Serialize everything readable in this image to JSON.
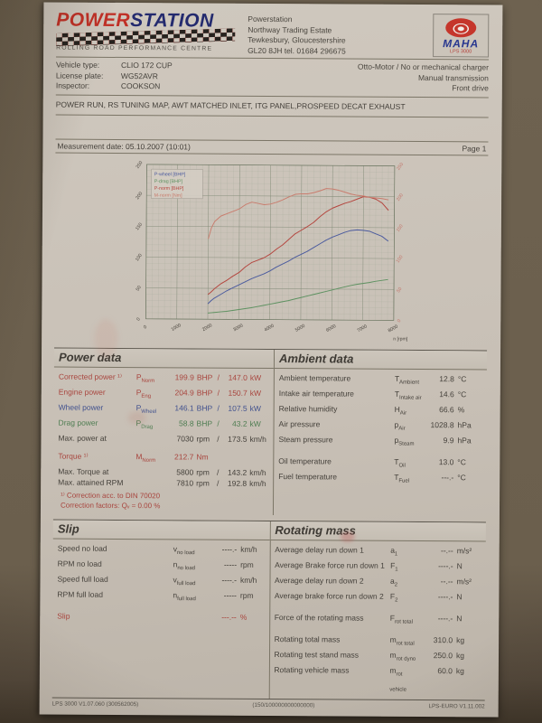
{
  "header": {
    "logo": {
      "word_red": "POWER",
      "word_blue": "STATION",
      "subtitle": "ROLLING ROAD PERFORMANCE CENTRE"
    },
    "address": [
      "Powerstation",
      "Northway Trading Estate",
      "Tewkesbury, Gloucestershire",
      "GL20 8JH     tel. 01684 296675"
    ],
    "maha": {
      "name": "MAHA",
      "model": "LPS 3000"
    }
  },
  "vehicle": {
    "rows": [
      {
        "label": "Vehicle type:",
        "value": "CLIO 172 CUP"
      },
      {
        "label": "License plate:",
        "value": "WG52AVR"
      },
      {
        "label": "Inspector:",
        "value": "COOKSON"
      }
    ],
    "drivetrain": [
      "Otto-Motor / No or mechanical charger",
      "Manual transmission",
      "Front drive"
    ],
    "comment": "POWER RUN, RS TUNING MAP, AWT MATCHED INLET, ITG PANEL,PROSPEED DECAT EXHAUST"
  },
  "measurement": {
    "label": "Measurement date: 05.10.2007 (10:01)",
    "page": "Page 1"
  },
  "chart_data": {
    "type": "line",
    "title": "",
    "xlabel": "n [rpm]",
    "xlim": [
      0,
      8000
    ],
    "ylim_left": [
      0,
      250
    ],
    "ylim_right": [
      0,
      250
    ],
    "x_ticks": [
      0,
      1000,
      2000,
      3000,
      4000,
      5000,
      6000,
      7000,
      8000
    ],
    "y_ticks": [
      0,
      50,
      100,
      150,
      200,
      250
    ],
    "x_minor_step": 200,
    "y_minor_step": 10,
    "grid": true,
    "legend_position": "top-left",
    "x": [
      2000,
      2100,
      2200,
      2400,
      2600,
      2800,
      3000,
      3200,
      3400,
      3600,
      3800,
      4000,
      4200,
      4400,
      4600,
      4800,
      5000,
      5200,
      5400,
      5600,
      5800,
      6000,
      6200,
      6400,
      6600,
      6800,
      7000,
      7200,
      7400,
      7600,
      7810
    ],
    "series": [
      {
        "name": "P-wheel [BHP]",
        "color": "#4a5a9e",
        "values": [
          25,
          30,
          34,
          40,
          46,
          51,
          56,
          61,
          66,
          70,
          74,
          79,
          85,
          90,
          95,
          101,
          106,
          111,
          117,
          123,
          129,
          134,
          138,
          142,
          145,
          146.1,
          145.5,
          144,
          140,
          136,
          128
        ]
      },
      {
        "name": "P-drag [BHP]",
        "color": "#5d9160",
        "values": [
          10,
          10.5,
          11,
          12,
          13,
          14.5,
          16,
          17.5,
          19,
          21,
          23,
          25,
          27,
          29,
          31,
          33.5,
          36,
          38.5,
          41,
          43.5,
          46,
          48.5,
          51,
          53.5,
          56,
          58,
          59.5,
          61,
          63,
          64.5,
          66
        ]
      },
      {
        "name": "P-norm [BHP]",
        "color": "#b4453e",
        "values": [
          40,
          44,
          49,
          57,
          63,
          70,
          76,
          85,
          92,
          96,
          100,
          106,
          114,
          121,
          130,
          139,
          145,
          151,
          158,
          167,
          175,
          181,
          185,
          189,
          192,
          196,
          199.9,
          199,
          196,
          190,
          178
        ]
      },
      {
        "name": "M-norm [Nm]",
        "color": "#c97c6d",
        "values": [
          130,
          148,
          158,
          167,
          171,
          175,
          179,
          186,
          190,
          188,
          186,
          187,
          190,
          194,
          199,
          203,
          204,
          204,
          206,
          209,
          212.7,
          212,
          210,
          207,
          204,
          202,
          201,
          199,
          198,
          197,
          195
        ]
      }
    ]
  },
  "power_data": {
    "title": "Power data",
    "rows": [
      {
        "label": "Corrected power ¹⁾",
        "sym": "P",
        "sub": "Norm",
        "v1": "199.9",
        "u1": "BHP",
        "v2": "147.0",
        "u2": "kW",
        "color": "red"
      },
      {
        "label": "Engine power",
        "sym": "P",
        "sub": "Eng",
        "v1": "204.9",
        "u1": "BHP",
        "v2": "150.7",
        "u2": "kW",
        "color": "red"
      },
      {
        "label": "Wheel power",
        "sym": "P",
        "sub": "Wheel",
        "v1": "146.1",
        "u1": "BHP",
        "v2": "107.5",
        "u2": "kW",
        "color": "blue"
      },
      {
        "label": "Drag power",
        "sym": "P",
        "sub": "Drag",
        "v1": "58.8",
        "u1": "BHP",
        "v2": "43.2",
        "u2": "kW",
        "color": "green"
      },
      {
        "label": "Max. power at",
        "sym": "",
        "sub": "",
        "v1": "7030",
        "u1": "rpm",
        "v2": "173.5",
        "u2": "km/h",
        "color": "black",
        "gap_after": true
      },
      {
        "label": "Torque ¹⁾",
        "sym": "M",
        "sub": "Norm",
        "v1": "212.7",
        "u1": "Nm",
        "v2": "",
        "u2": "",
        "color": "red"
      },
      {
        "label": "Max. Torque at",
        "sym": "",
        "sub": "",
        "v1": "5800",
        "u1": "rpm",
        "v2": "143.2",
        "u2": "km/h",
        "color": "black"
      },
      {
        "label": "Max. attained RPM",
        "sym": "",
        "sub": "",
        "v1": "7810",
        "u1": "rpm",
        "v2": "192.8",
        "u2": "km/h",
        "color": "black"
      }
    ],
    "footnotes": [
      "¹⁾ Correction acc. to DIN 70020",
      "Correction factors: Qᵥ =   0.00 %"
    ]
  },
  "ambient_data": {
    "title": "Ambient data",
    "rows": [
      {
        "label": "Ambient temperature",
        "sym": "T",
        "sub": "Ambient",
        "v": "12.8",
        "u": "°C"
      },
      {
        "label": "Intake air temperature",
        "sym": "T",
        "sub": "Intake air",
        "v": "14.6",
        "u": "°C"
      },
      {
        "label": "Relative humidity",
        "sym": "H",
        "sub": "Air",
        "v": "66.6",
        "u": "%"
      },
      {
        "label": "Air pressure",
        "sym": "p",
        "sub": "Air",
        "v": "1028.8",
        "u": "hPa"
      },
      {
        "label": "Steam pressure",
        "sym": "p",
        "sub": "Steam",
        "v": "9.9",
        "u": "hPa",
        "gap_after": true
      },
      {
        "label": "Oil temperature",
        "sym": "T",
        "sub": "Oil",
        "v": "13.0",
        "u": "°C"
      },
      {
        "label": "Fuel temperature",
        "sym": "T",
        "sub": "Fuel",
        "v": "---.-",
        "u": "°C"
      }
    ]
  },
  "slip": {
    "title": "Slip",
    "rows": [
      {
        "label": "Speed no load",
        "sym": "v",
        "sub": "no load",
        "v": "----.-",
        "u": "km/h"
      },
      {
        "label": "RPM no load",
        "sym": "n",
        "sub": "no load",
        "v": "-----",
        "u": "rpm"
      },
      {
        "label": "Speed full load",
        "sym": "v",
        "sub": "full load",
        "v": "----.-",
        "u": "km/h"
      },
      {
        "label": "RPM full load",
        "sym": "n",
        "sub": "full load",
        "v": "-----",
        "u": "rpm",
        "gap_after": true
      },
      {
        "label": "Slip",
        "sym": "",
        "sub": "",
        "v": "---.--",
        "u": "%",
        "color": "red"
      }
    ]
  },
  "rotating_mass": {
    "title": "Rotating mass",
    "rows": [
      {
        "label": "Average delay run down 1",
        "sym": "a",
        "sub": "1",
        "v": "--.--",
        "u": "m/s²"
      },
      {
        "label": "Average Brake force run down 1",
        "sym": "F",
        "sub": "1",
        "v": "----.-",
        "u": "N"
      },
      {
        "label": "Average delay run down 2",
        "sym": "a",
        "sub": "2",
        "v": "--.--",
        "u": "m/s²"
      },
      {
        "label": "Average brake force run down 2",
        "sym": "F",
        "sub": "2",
        "v": "----.-",
        "u": "N",
        "gap_after": true
      },
      {
        "label": "Force of the rotating mass",
        "sym": "F",
        "sub": "rot total",
        "v": "----.-",
        "u": "N",
        "gap_after": true
      },
      {
        "label": "Rotating total mass",
        "sym": "m",
        "sub": "rot total",
        "v": "310.0",
        "u": "kg"
      },
      {
        "label": "Rotating test stand mass",
        "sym": "m",
        "sub": "rot dyno",
        "v": "250.0",
        "u": "kg"
      },
      {
        "label": "Rotating vehicle mass",
        "sym": "m",
        "sub": "rot vehicle",
        "v": "60.0",
        "u": "kg"
      }
    ]
  },
  "footer": {
    "left": "LPS 3000 V1.07.060 (300562005)",
    "center": "(150/100000000000000)",
    "right": "LPS-EURO V1.11.002"
  }
}
